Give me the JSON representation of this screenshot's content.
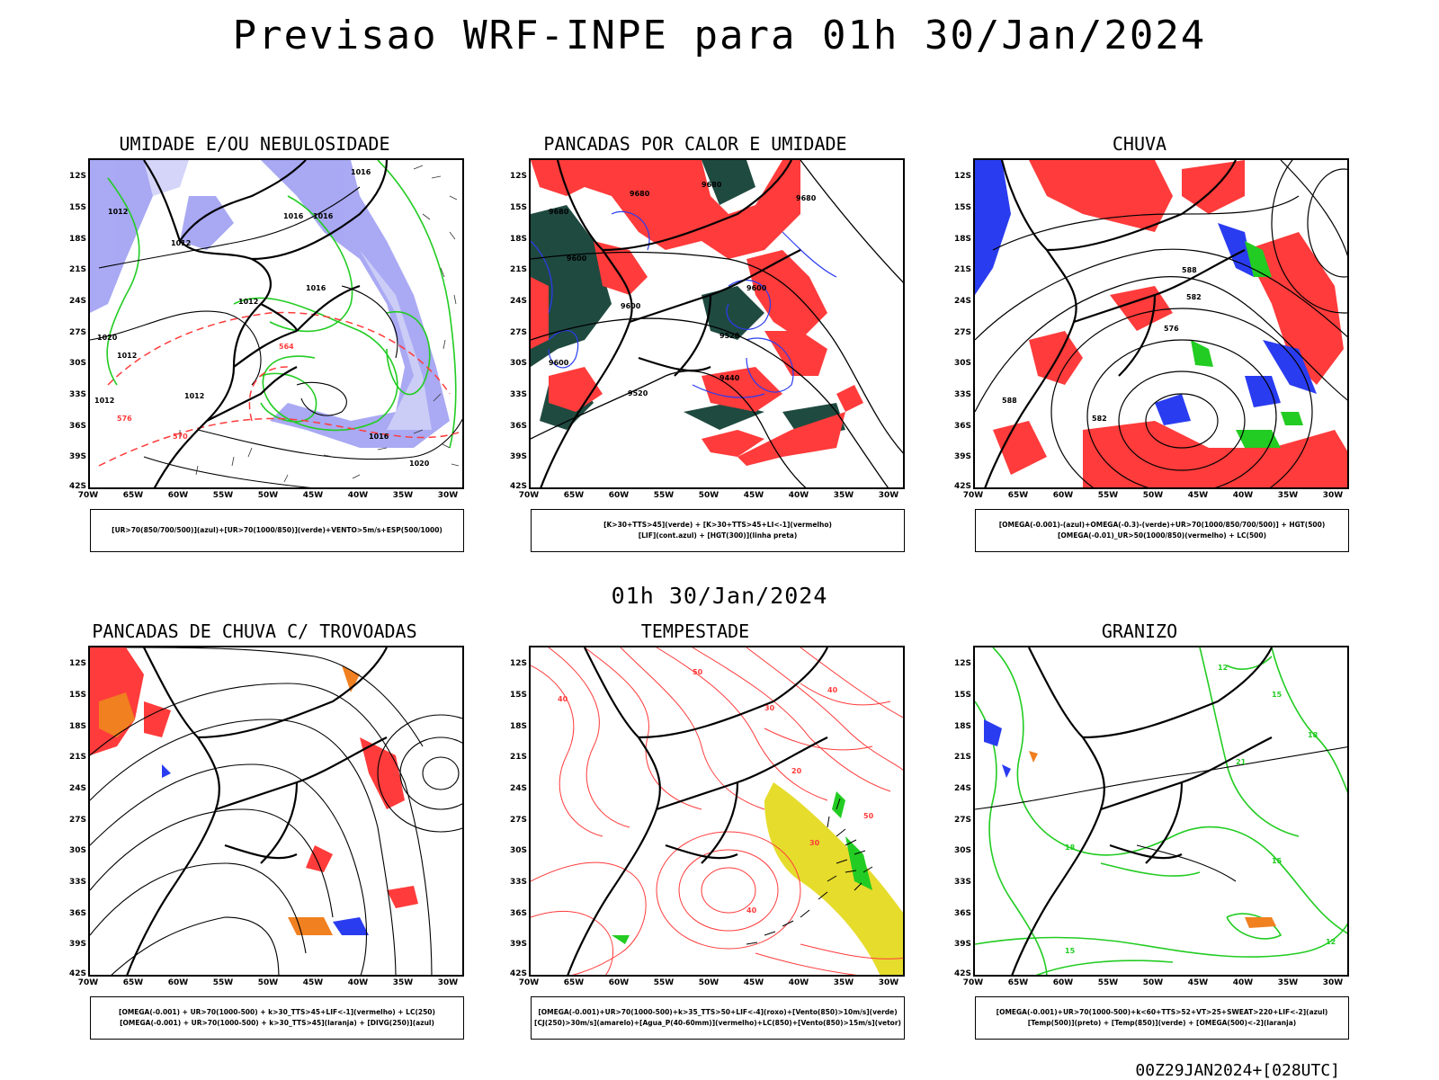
{
  "header": {
    "title": "Previsao WRF-INPE  para 01h 30/Jan/2024"
  },
  "mid_title": "01h 30/Jan/2024",
  "footer": "00Z29JAN2024+[028UTC]",
  "axes": {
    "lat_labels": [
      "12S",
      "15S",
      "18S",
      "21S",
      "24S",
      "27S",
      "30S",
      "33S",
      "36S",
      "39S",
      "42S"
    ],
    "lon_labels": [
      "70W",
      "65W",
      "60W",
      "55W",
      "50W",
      "45W",
      "40W",
      "35W",
      "30W"
    ]
  },
  "colors": {
    "blue": "#8080f0",
    "green": "#22cc22",
    "red": "#ff3b3b",
    "darkgreen": "#1f4a40",
    "yellow": "#e6dc2c",
    "orange": "#f08020",
    "black": "#000000"
  },
  "panels": [
    {
      "title": "UMIDADE E/OU NEBULOSIDADE",
      "caption": [
        "[UR>70(850/700/500)](azul)+[UR>70(1000/850)](verde)+VENTO>5m/s+ESP(500/1000)"
      ],
      "contour_labels": [
        "1016",
        "1012",
        "1016",
        "1016",
        "1012",
        "1012",
        "1016",
        "1020",
        "1012",
        "1012",
        "1012",
        "576",
        "570",
        "564",
        "1016",
        "1020"
      ]
    },
    {
      "title": "PANCADAS POR CALOR E UMIDADE",
      "caption": [
        "[K>30+TTS>45](verde) + [K>30+TTS>45+LI<-1](vermelho)",
        "[LIF](cont.azul) + [HGT(300)](linha preta)"
      ],
      "contour_labels": [
        "9680",
        "9680",
        "9680",
        "9600",
        "9600",
        "9600",
        "9520",
        "9440",
        "9520",
        "9600",
        "9680"
      ]
    },
    {
      "title": "CHUVA",
      "caption": [
        "[OMEGA(-0.001)-(azul)+OMEGA(-0.3)-(verde)+UR>70(1000/850/700/500)] + HGT(500)",
        "[OMEGA(-0.01)_UR>50(1000/850)(vermelho) + LC(500)"
      ],
      "contour_labels": [
        "588",
        "582",
        "576",
        "588",
        "582"
      ]
    },
    {
      "title": "PANCADAS DE CHUVA C/ TROVOADAS",
      "caption": [
        "[OMEGA(-0.001) + UR>70(1000-500) + k>30_TTS>45+LIF<-1](vermelho) + LC(250)",
        "[OMEGA(-0.001) + UR>70(1000-500) + k>30_TTS>45](laranja) + [DIVG(250)](azul)"
      ]
    },
    {
      "title": "TEMPESTADE",
      "caption": [
        "[OMEGA(-0.001)+UR>70(1000-500)+k>35_TTS>50+LIF<-4](roxo)+[Vento(850)>10m/s](verde)",
        "[CJ(250)>30m/s](amarelo)+[Agua_P(40-60mm)](vermelho)+LC(850)+[Vento(850)>15m/s](vetor)"
      ],
      "contour_labels": [
        "40",
        "50",
        "30",
        "40",
        "20",
        "30",
        "50",
        "40"
      ]
    },
    {
      "title": "GRANIZO",
      "caption": [
        "[OMEGA(-0.001)+UR>70(1000-500)+k<60+TTS>52+VT>25+SWEAT>220+LIF<-2](azul)",
        "[Temp(500)](preto) + [Temp(850)](verde) + [OMEGA(500)<-2](laranja)"
      ],
      "contour_labels": [
        "12",
        "15",
        "18",
        "21",
        "18",
        "15",
        "12",
        "15"
      ]
    }
  ]
}
